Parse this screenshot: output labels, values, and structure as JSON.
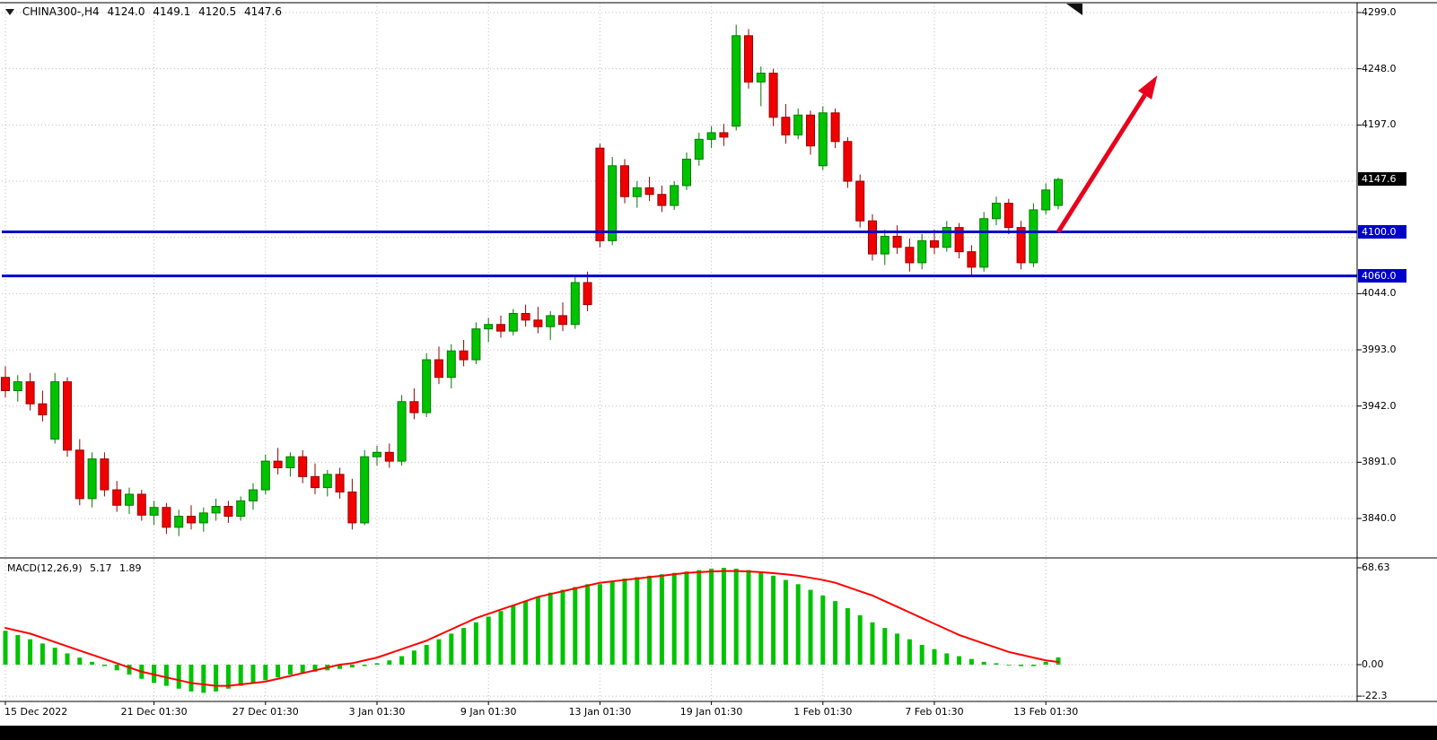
{
  "header": {
    "symbol": "CHINA300-,H4",
    "open": "4124.0",
    "high": "4149.1",
    "low": "4120.5",
    "close": "4147.6"
  },
  "indicator": {
    "name": "MACD(12,26,9)",
    "macd_value": "5.17",
    "signal_value": "1.89"
  },
  "price_axis": {
    "labels": [
      {
        "text": "4299.0",
        "price": 4299
      },
      {
        "text": "4248.0",
        "price": 4248
      },
      {
        "text": "4197.0",
        "price": 4197
      },
      {
        "text": "4044.0",
        "price": 4044
      },
      {
        "text": "3993.0",
        "price": 3993
      },
      {
        "text": "3942.0",
        "price": 3942
      },
      {
        "text": "3891.0",
        "price": 3891
      },
      {
        "text": "3840.0",
        "price": 3840
      }
    ],
    "current_tag": {
      "text": "4147.6",
      "price": 4147.6
    },
    "level_tags": [
      {
        "text": "4100.0",
        "price": 4100
      },
      {
        "text": "4060.0",
        "price": 4060
      }
    ]
  },
  "macd_axis": [
    {
      "text": "68.63",
      "value": 68.63
    },
    {
      "text": "0.00",
      "value": 0
    },
    {
      "text": "-22.3",
      "value": -22.3
    }
  ],
  "colors": {
    "bull": "#00C300",
    "bull_border": "#007A00",
    "bear": "#F00000",
    "bear_border": "#990000",
    "histogram": "#00C300",
    "signal": "#FF0000",
    "level_line": "#0000CC",
    "arrow": "#E8001C",
    "grid": "#BDBDBD",
    "border": "#000000",
    "tag_current_bg": "#000000",
    "tag_level_bg": "#0000C8",
    "shift_marker": "#111111"
  },
  "chart_data": [
    {
      "type": "candlestick",
      "symbol": "CHINA300-",
      "timeframe": "H4",
      "ylim": [
        3815,
        4310
      ],
      "grid_prices": [
        4299,
        4248,
        4197,
        4146,
        4095,
        4044,
        3993,
        3942,
        3891,
        3840
      ],
      "x_labels": [
        {
          "text": "15 Dec 2022",
          "bar": 0
        },
        {
          "text": "21 Dec 01:30",
          "bar": 12
        },
        {
          "text": "27 Dec 01:30",
          "bar": 21
        },
        {
          "text": "3 Jan 01:30",
          "bar": 30
        },
        {
          "text": "9 Jan 01:30",
          "bar": 39
        },
        {
          "text": "13 Jan 01:30",
          "bar": 48
        },
        {
          "text": "19 Jan 01:30",
          "bar": 57
        },
        {
          "text": "1 Feb 01:30",
          "bar": 66
        },
        {
          "text": "7 Feb 01:30",
          "bar": 75
        },
        {
          "text": "13 Feb 01:30",
          "bar": 84
        }
      ],
      "levels": [
        4100,
        4060
      ],
      "current_price": 4147.6,
      "arrow": {
        "from_bar": 85,
        "from_price": 4100,
        "to_bar": 93,
        "to_price": 4242
      },
      "candles": [
        [
          3968,
          3978,
          3950,
          3956
        ],
        [
          3956,
          3970,
          3946,
          3964
        ],
        [
          3964,
          3972,
          3938,
          3944
        ],
        [
          3944,
          3956,
          3928,
          3934
        ],
        [
          3912,
          3972,
          3908,
          3964
        ],
        [
          3964,
          3968,
          3896,
          3902
        ],
        [
          3902,
          3912,
          3852,
          3858
        ],
        [
          3858,
          3900,
          3850,
          3894
        ],
        [
          3894,
          3900,
          3860,
          3866
        ],
        [
          3866,
          3874,
          3846,
          3852
        ],
        [
          3852,
          3868,
          3844,
          3862
        ],
        [
          3862,
          3866,
          3838,
          3843
        ],
        [
          3843,
          3856,
          3834,
          3850
        ],
        [
          3850,
          3854,
          3826,
          3832
        ],
        [
          3832,
          3848,
          3824,
          3842
        ],
        [
          3842,
          3852,
          3830,
          3836
        ],
        [
          3836,
          3850,
          3828,
          3845
        ],
        [
          3845,
          3858,
          3838,
          3851
        ],
        [
          3851,
          3856,
          3836,
          3842
        ],
        [
          3842,
          3860,
          3838,
          3856
        ],
        [
          3856,
          3872,
          3848,
          3866
        ],
        [
          3866,
          3898,
          3862,
          3892
        ],
        [
          3892,
          3904,
          3880,
          3886
        ],
        [
          3886,
          3900,
          3878,
          3896
        ],
        [
          3896,
          3902,
          3872,
          3878
        ],
        [
          3878,
          3890,
          3862,
          3868
        ],
        [
          3868,
          3884,
          3860,
          3880
        ],
        [
          3880,
          3886,
          3858,
          3864
        ],
        [
          3864,
          3876,
          3830,
          3836
        ],
        [
          3836,
          3902,
          3834,
          3896
        ],
        [
          3896,
          3906,
          3888,
          3900
        ],
        [
          3900,
          3908,
          3886,
          3892
        ],
        [
          3892,
          3952,
          3888,
          3946
        ],
        [
          3946,
          3958,
          3930,
          3936
        ],
        [
          3936,
          3990,
          3932,
          3984
        ],
        [
          3984,
          3996,
          3962,
          3968
        ],
        [
          3968,
          3998,
          3958,
          3992
        ],
        [
          3992,
          4002,
          3978,
          3984
        ],
        [
          3984,
          4018,
          3980,
          4012
        ],
        [
          4012,
          4022,
          4000,
          4016
        ],
        [
          4016,
          4024,
          4004,
          4010
        ],
        [
          4010,
          4030,
          4006,
          4026
        ],
        [
          4026,
          4034,
          4014,
          4020
        ],
        [
          4020,
          4032,
          4008,
          4014
        ],
        [
          4014,
          4028,
          4002,
          4024
        ],
        [
          4024,
          4036,
          4010,
          4016
        ],
        [
          4016,
          4060,
          4012,
          4054
        ],
        [
          4054,
          4064,
          4028,
          4034
        ],
        [
          4176,
          4180,
          4086,
          4092
        ],
        [
          4092,
          4168,
          4088,
          4160
        ],
        [
          4160,
          4166,
          4126,
          4132
        ],
        [
          4132,
          4146,
          4122,
          4140
        ],
        [
          4140,
          4150,
          4128,
          4134
        ],
        [
          4134,
          4142,
          4118,
          4124
        ],
        [
          4124,
          4146,
          4120,
          4142
        ],
        [
          4142,
          4172,
          4138,
          4166
        ],
        [
          4166,
          4190,
          4160,
          4184
        ],
        [
          4184,
          4196,
          4176,
          4190
        ],
        [
          4190,
          4198,
          4178,
          4186
        ],
        [
          4196,
          4288,
          4192,
          4278
        ],
        [
          4278,
          4284,
          4230,
          4236
        ],
        [
          4236,
          4250,
          4214,
          4244
        ],
        [
          4244,
          4248,
          4196,
          4204
        ],
        [
          4204,
          4216,
          4180,
          4188
        ],
        [
          4188,
          4212,
          4184,
          4206
        ],
        [
          4206,
          4210,
          4170,
          4178
        ],
        [
          4160,
          4214,
          4156,
          4208
        ],
        [
          4208,
          4212,
          4176,
          4182
        ],
        [
          4182,
          4186,
          4140,
          4146
        ],
        [
          4146,
          4152,
          4104,
          4110
        ],
        [
          4110,
          4116,
          4074,
          4080
        ],
        [
          4080,
          4102,
          4070,
          4096
        ],
        [
          4096,
          4106,
          4080,
          4086
        ],
        [
          4086,
          4094,
          4064,
          4072
        ],
        [
          4072,
          4098,
          4066,
          4092
        ],
        [
          4092,
          4102,
          4080,
          4086
        ],
        [
          4086,
          4110,
          4082,
          4104
        ],
        [
          4104,
          4108,
          4076,
          4082
        ],
        [
          4082,
          4088,
          4060,
          4068
        ],
        [
          4068,
          4118,
          4064,
          4112
        ],
        [
          4112,
          4132,
          4106,
          4126
        ],
        [
          4126,
          4130,
          4098,
          4104
        ],
        [
          4104,
          4110,
          4066,
          4072
        ],
        [
          4072,
          4126,
          4068,
          4120
        ],
        [
          4120,
          4144,
          4116,
          4138
        ],
        [
          4124,
          4149.1,
          4120.5,
          4147.6
        ]
      ]
    },
    {
      "type": "bar",
      "title": "MACD(12,26,9)",
      "ylim": [
        -22.3,
        68.63
      ],
      "y_ticks": [
        68.63,
        0,
        -22.3
      ],
      "current": {
        "macd": 5.17,
        "signal": 1.89
      },
      "values": [
        24,
        21,
        18,
        15,
        12,
        8,
        5,
        2,
        -1,
        -4,
        -7,
        -10,
        -13,
        -15,
        -17,
        -19,
        -20,
        -19,
        -17,
        -15,
        -13,
        -11,
        -9,
        -7,
        -6,
        -5,
        -4,
        -3,
        -2,
        -1,
        1,
        3,
        6,
        10,
        14,
        18,
        22,
        26,
        30,
        34,
        38,
        42,
        45,
        48,
        51,
        53,
        55,
        57,
        57,
        59,
        61,
        62,
        63,
        64,
        65,
        66,
        67,
        68,
        68.6,
        68,
        67,
        65,
        63,
        60,
        57,
        53,
        49,
        45,
        40,
        35,
        30,
        26,
        22,
        18,
        14,
        11,
        8,
        6,
        4,
        2,
        1,
        0,
        -1,
        -1,
        2,
        5.17
      ],
      "series": [
        {
          "name": "signal",
          "values": [
            26,
            24,
            22,
            19,
            16,
            13,
            10,
            7,
            4,
            1,
            -2,
            -5,
            -7,
            -9,
            -11,
            -13,
            -14,
            -15,
            -15,
            -14,
            -13,
            -12,
            -10,
            -8,
            -6,
            -4,
            -2,
            0,
            1,
            3,
            5,
            8,
            11,
            14,
            17,
            21,
            25,
            29,
            33,
            36,
            39,
            42,
            45,
            48,
            50,
            52,
            54,
            56,
            58,
            59,
            60,
            61,
            62,
            63,
            64,
            65,
            65.5,
            66,
            66.3,
            66.3,
            66,
            65.5,
            64.8,
            64,
            63,
            61.5,
            60,
            58,
            55,
            52,
            49,
            45,
            41,
            37,
            33,
            29,
            25,
            21,
            18,
            15,
            12,
            9,
            7,
            5,
            3,
            1.89
          ]
        }
      ]
    }
  ]
}
